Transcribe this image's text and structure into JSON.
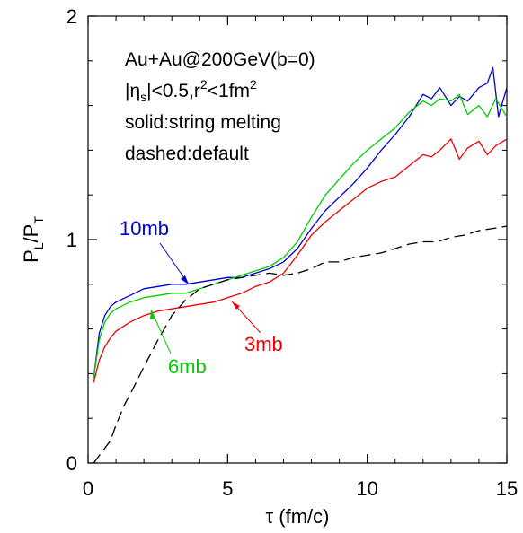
{
  "chart_data": {
    "type": "line",
    "title": "",
    "xlabel": "τ (fm/c)",
    "ylabel_main": "P",
    "ylabel_sub1": "L",
    "ylabel_slash": "/P",
    "ylabel_sub2": "T",
    "xlim": [
      0,
      15
    ],
    "ylim": [
      0,
      2
    ],
    "x_ticks": [
      0,
      5,
      10,
      15
    ],
    "x_tick_labels": [
      "0",
      "5",
      "10",
      "15"
    ],
    "y_ticks": [
      0,
      1,
      2
    ],
    "y_tick_labels": [
      "0",
      "1",
      "2"
    ],
    "grid": false,
    "annotations": {
      "line1_a": "Au+Au@200GeV(b=0)",
      "line2_a": "|η",
      "line2_sub": "s",
      "line2_b": "|<0.5,r",
      "line2_sup1": "2",
      "line2_c": "<1fm",
      "line2_sup2": "2",
      "line3": "solid:string melting",
      "line4": "dashed:default"
    },
    "series": [
      {
        "name": "10mb",
        "color": "#0000cc",
        "dash": "solid",
        "label_x": 3.5,
        "label_y": 0.81,
        "x": [
          0.2,
          0.4,
          0.6,
          0.8,
          1.0,
          1.5,
          2.0,
          2.5,
          3.0,
          3.5,
          4.0,
          4.5,
          5.0,
          5.5,
          6.0,
          6.5,
          7.0,
          7.5,
          8.0,
          8.5,
          9.0,
          9.5,
          10.0,
          10.5,
          11.0,
          11.5,
          12.0,
          12.3,
          12.6,
          13.0,
          13.3,
          13.6,
          14.0,
          14.3,
          14.5,
          14.7,
          15.0
        ],
        "y": [
          0.38,
          0.58,
          0.66,
          0.7,
          0.72,
          0.75,
          0.78,
          0.79,
          0.8,
          0.8,
          0.81,
          0.82,
          0.83,
          0.83,
          0.85,
          0.87,
          0.9,
          0.96,
          1.05,
          1.13,
          1.19,
          1.25,
          1.32,
          1.4,
          1.47,
          1.55,
          1.65,
          1.63,
          1.68,
          1.6,
          1.64,
          1.62,
          1.68,
          1.7,
          1.77,
          1.55,
          1.68
        ]
      },
      {
        "name": "6mb",
        "color": "#00cc00",
        "dash": "solid",
        "label_x": 2.3,
        "label_y": 0.69,
        "x": [
          0.2,
          0.4,
          0.6,
          0.8,
          1.0,
          1.5,
          2.0,
          2.5,
          3.0,
          3.5,
          4.0,
          4.5,
          5.0,
          5.5,
          6.0,
          6.5,
          7.0,
          7.5,
          8.0,
          8.5,
          9.0,
          9.5,
          10.0,
          10.5,
          11.0,
          11.5,
          12.0,
          12.3,
          12.6,
          13.0,
          13.3,
          13.6,
          14.0,
          14.3,
          14.6,
          15.0
        ],
        "y": [
          0.38,
          0.55,
          0.63,
          0.67,
          0.69,
          0.72,
          0.74,
          0.75,
          0.76,
          0.76,
          0.78,
          0.8,
          0.82,
          0.84,
          0.86,
          0.88,
          0.92,
          0.99,
          1.1,
          1.2,
          1.27,
          1.34,
          1.4,
          1.45,
          1.5,
          1.57,
          1.62,
          1.6,
          1.63,
          1.62,
          1.65,
          1.56,
          1.6,
          1.55,
          1.63,
          1.55
        ]
      },
      {
        "name": "3mb",
        "color": "#ee0000",
        "dash": "solid",
        "label_x": 5.0,
        "label_y": 0.72,
        "x": [
          0.2,
          0.4,
          0.6,
          0.8,
          1.0,
          1.5,
          2.0,
          2.5,
          3.0,
          3.5,
          4.0,
          4.5,
          5.0,
          5.5,
          6.0,
          6.5,
          7.0,
          7.5,
          8.0,
          8.5,
          9.0,
          9.5,
          10.0,
          10.5,
          11.0,
          11.5,
          12.0,
          12.3,
          12.6,
          13.0,
          13.3,
          13.6,
          14.0,
          14.3,
          14.6,
          15.0
        ],
        "y": [
          0.36,
          0.46,
          0.52,
          0.56,
          0.59,
          0.63,
          0.66,
          0.68,
          0.69,
          0.7,
          0.71,
          0.72,
          0.74,
          0.76,
          0.79,
          0.81,
          0.85,
          0.93,
          1.02,
          1.08,
          1.13,
          1.18,
          1.23,
          1.26,
          1.28,
          1.33,
          1.38,
          1.37,
          1.4,
          1.45,
          1.36,
          1.41,
          1.44,
          1.38,
          1.42,
          1.45
        ]
      },
      {
        "name": "",
        "color": "#000000",
        "dash": "dashed",
        "x": [
          0.2,
          0.5,
          0.8,
          1.0,
          1.3,
          1.6,
          2.0,
          2.5,
          3.0,
          3.5,
          4.0,
          4.5,
          5.0,
          5.5,
          6.0,
          6.5,
          7.0,
          7.5,
          8.0,
          8.5,
          9.0,
          9.5,
          10.0,
          10.5,
          11.0,
          11.5,
          12.0,
          12.5,
          13.0,
          13.5,
          14.0,
          14.5,
          15.0
        ],
        "y": [
          0.0,
          0.05,
          0.1,
          0.17,
          0.26,
          0.33,
          0.43,
          0.55,
          0.66,
          0.73,
          0.78,
          0.8,
          0.82,
          0.83,
          0.84,
          0.85,
          0.84,
          0.85,
          0.87,
          0.9,
          0.9,
          0.92,
          0.93,
          0.94,
          0.96,
          0.98,
          0.99,
          0.99,
          1.01,
          1.02,
          1.04,
          1.05,
          1.06
        ]
      }
    ]
  }
}
